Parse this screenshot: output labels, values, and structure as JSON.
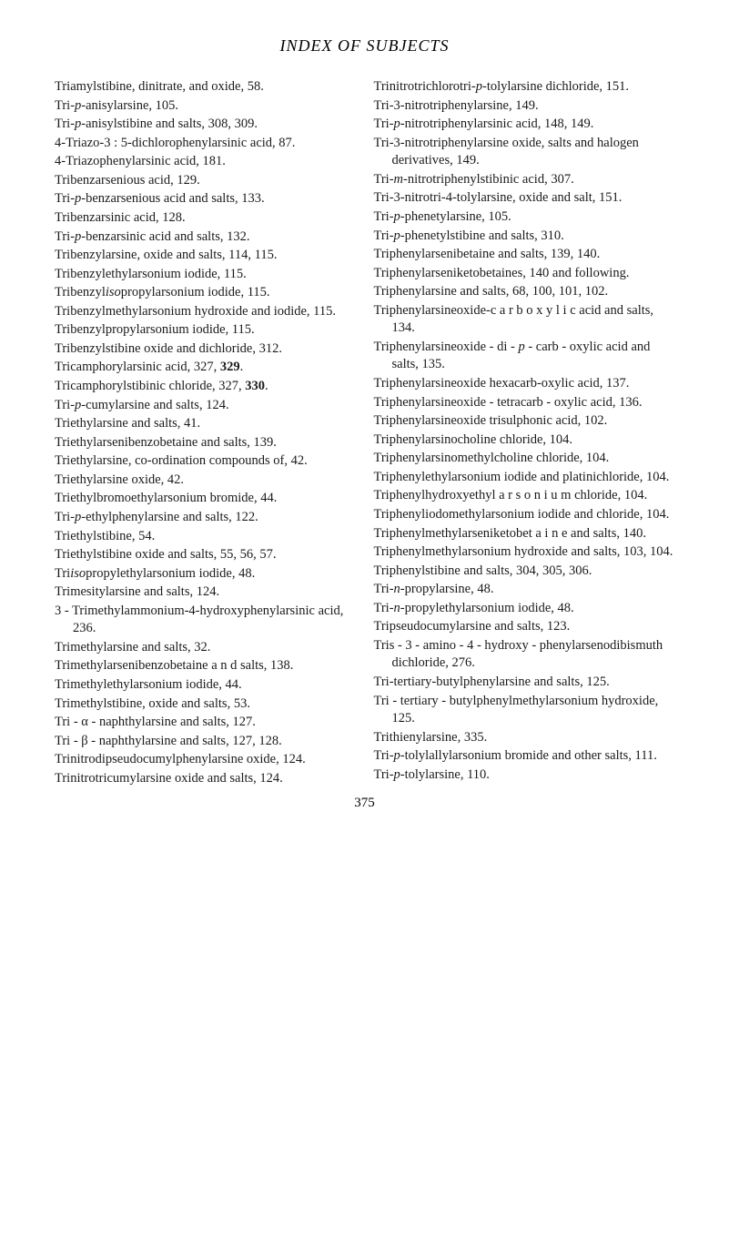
{
  "header": "INDEX OF SUBJECTS",
  "pageNumber": "375",
  "leftColumn": [
    "Triamylstibine, dinitrate, and oxide, 58.",
    "Tri-<i>p</i>-anisylarsine, 105.",
    "Tri-<i>p</i>-anisylstibine and salts, 308, 309.",
    "4-Triazo-3 : 5-dichlorophenylarsinic acid, 87.",
    "4-Triazophenylarsinic acid, 181.",
    "Tribenzarsenious acid, 129.",
    "Tri-<i>p</i>-benzarsenious acid and salts, 133.",
    "Tribenzarsinic acid, 128.",
    "Tri-<i>p</i>-benzarsinic acid and salts, 132.",
    "Tribenzylarsine, oxide and salts, 114, 115.",
    "Tribenzylethylarsonium iodide, 115.",
    "Tribenzyl<i>iso</i>propylarsonium iodide, 115.",
    "Tribenzylmethylarsonium hydroxide and iodide, 115.",
    "Tribenzylpropylarsonium iodide, 115.",
    "Tribenzylstibine oxide and dichloride, 312.",
    "Tricamphorylarsinic acid, 327, <b>329</b>.",
    "Tricamphorylstibinic chloride, 327, <b>330</b>.",
    "Tri-<i>p</i>-cumylarsine and salts, 124.",
    "Triethylarsine and salts, 41.",
    "Triethylarsenibenzobetaine and salts, 139.",
    "Triethylarsine, co-ordination compounds of, 42.",
    "Triethylarsine oxide, 42.",
    "Triethylbromoethylarsonium bromide, 44.",
    "Tri-<i>p</i>-ethylphenylarsine and salts, 122.",
    "Triethylstibine, 54.",
    "Triethylstibine oxide and salts, 55, 56, 57.",
    "Tri<i>iso</i>propylethylarsonium iodide, 48.",
    "Trimesitylarsine and salts, 124.",
    "3 - Trimethylammonium-4-hydroxyphenylarsinic acid, 236.",
    "Trimethylarsine and salts, 32.",
    "Trimethylarsenibenzobetaine a n d salts, 138.",
    "Trimethylethylarsonium iodide, 44.",
    "Trimethylstibine, oxide and salts, 53.",
    "Tri - α - naphthylarsine and salts, 127.",
    "Tri - β - naphthylarsine and salts, 127, 128.",
    "Trinitrodipseudocumylphenylarsine oxide, 124.",
    "Trinitrotricumylarsine oxide and salts, 124."
  ],
  "rightColumn": [
    "Trinitrotrichlorotri-<i>p</i>-tolylarsine dichloride, 151.",
    "Tri-3-nitrotriphenylarsine, 149.",
    "Tri-<i>p</i>-nitrotriphenylarsinic acid, 148, 149.",
    "Tri-3-nitrotriphenylarsine oxide, salts and halogen derivatives, 149.",
    "Tri-<i>m</i>-nitrotriphenylstibinic acid, 307.",
    "Tri-3-nitrotri-4-tolylarsine, oxide and salt, 151.",
    "Tri-<i>p</i>-phenetylarsine, 105.",
    "Tri-<i>p</i>-phenetylstibine and salts, 310.",
    "Triphenylarsenibetaine and salts, 139, 140.",
    "Triphenylarseniketobetaines, 140 and following.",
    "Triphenylarsine and salts, 68, 100, 101, 102.",
    "Triphenylarsineoxide-c a r b o x y l i c acid and salts, 134.",
    "Triphenylarsineoxide - di - <i>p</i> - carb - oxylic acid and salts, 135.",
    "Triphenylarsineoxide hexacarb-oxylic acid, 137.",
    "Triphenylarsineoxide - tetracarb - oxylic acid, 136.",
    "Triphenylarsineoxide trisulphonic acid, 102.",
    "Triphenylarsinocholine chloride, 104.",
    "Triphenylarsinomethylcholine chloride, 104.",
    "Triphenylethylarsonium iodide and platinichloride, 104.",
    "Triphenylhydroxyethyl a r s o n i u m chloride, 104.",
    "Triphenyliodomethylarsonium iodide and chloride, 104.",
    "Triphenylmethylarseniketobet a i n e and salts, 140.",
    "Triphenylmethylarsonium hydroxide and salts, 103, 104.",
    "Triphenylstibine and salts, 304, 305, 306.",
    "Tri-<i>n</i>-propylarsine, 48.",
    "Tri-<i>n</i>-propylethylarsonium iodide, 48.",
    "Tripseudocumylarsine and salts, 123.",
    "Tris - 3 - amino - 4 - hydroxy - phenylarsenodibismuth dichloride, 276.",
    "Tri-tertiary-butylphenylarsine and salts, 125.",
    "Tri - tertiary - butylphenylmethylarsonium hydroxide, 125.",
    "Trithienylarsine, 335.",
    "Tri-<i>p</i>-tolylallylarsonium bromide and other salts, 111.",
    "Tri-<i>p</i>-tolylarsine, 110."
  ]
}
